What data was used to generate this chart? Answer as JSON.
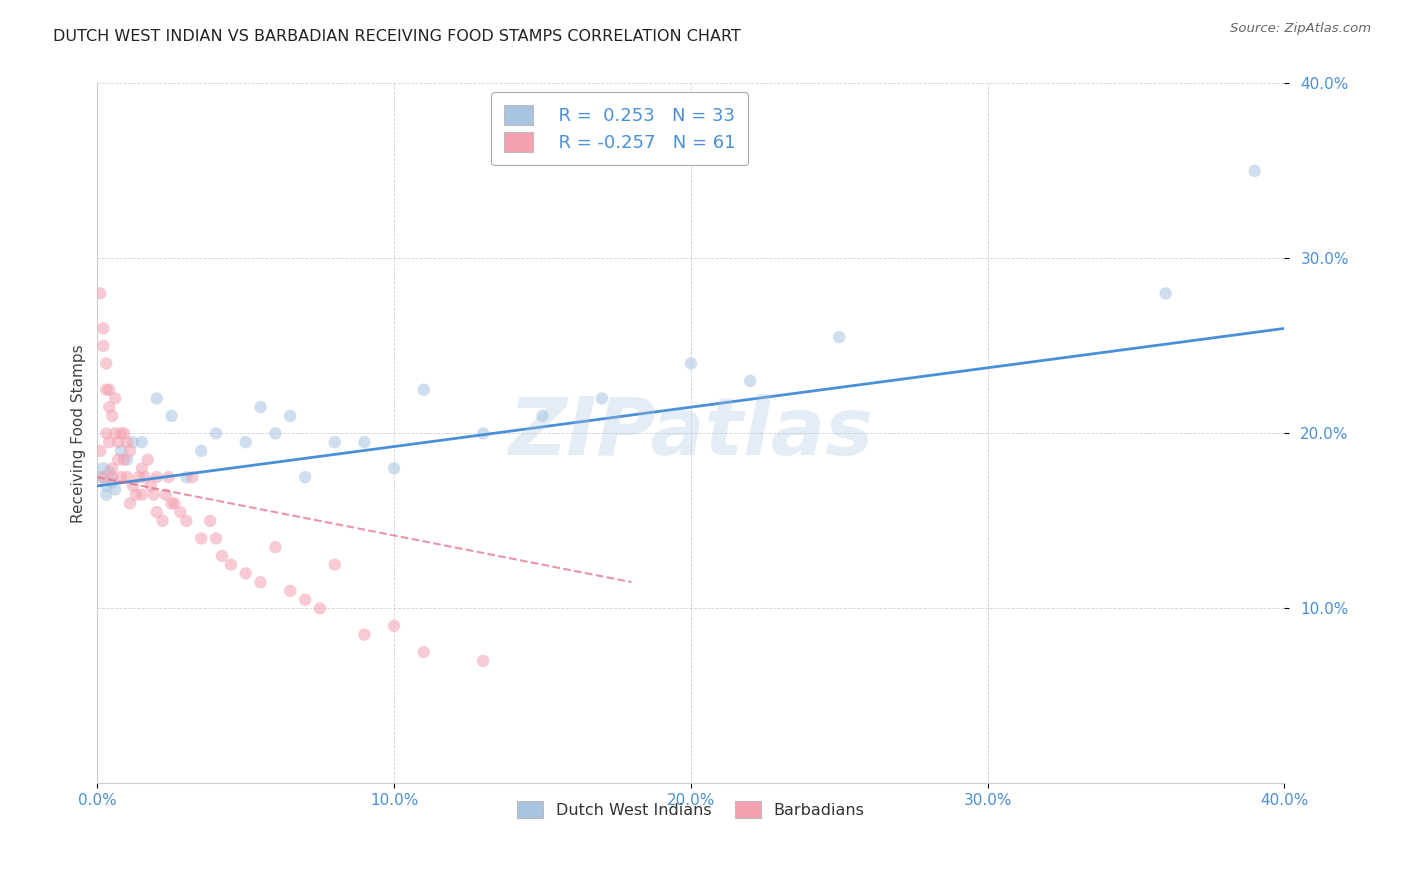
{
  "title": "DUTCH WEST INDIAN VS BARBADIAN RECEIVING FOOD STAMPS CORRELATION CHART",
  "source": "Source: ZipAtlas.com",
  "ylabel": "Receiving Food Stamps",
  "xlim": [
    0.0,
    0.4
  ],
  "ylim": [
    0.0,
    0.4
  ],
  "xtick_labels": [
    "0.0%",
    "10.0%",
    "20.0%",
    "30.0%",
    "40.0%"
  ],
  "xtick_values": [
    0.0,
    0.1,
    0.2,
    0.3,
    0.4
  ],
  "ytick_labels": [
    "10.0%",
    "20.0%",
    "30.0%",
    "40.0%"
  ],
  "ytick_values": [
    0.1,
    0.2,
    0.3,
    0.4
  ],
  "legend_labels": [
    "Dutch West Indians",
    "Barbadians"
  ],
  "legend_r_blue": "R =  0.253",
  "legend_n_blue": "N = 33",
  "legend_r_pink": "R = -0.257",
  "legend_n_pink": "N = 61",
  "watermark": "ZIPatlas",
  "blue_color": "#a8c4e0",
  "pink_color": "#f4a0b0",
  "blue_line_color": "#4a90d9",
  "pink_line_color": "#e06880",
  "axis_label_color": "#4a90d9",
  "background_color": "#ffffff",
  "scatter_size": 80,
  "scatter_alpha": 0.55,
  "blue_x": [
    0.001,
    0.002,
    0.003,
    0.003,
    0.004,
    0.005,
    0.006,
    0.008,
    0.01,
    0.012,
    0.015,
    0.02,
    0.025,
    0.03,
    0.035,
    0.04,
    0.05,
    0.055,
    0.06,
    0.065,
    0.07,
    0.08,
    0.09,
    0.1,
    0.11,
    0.13,
    0.15,
    0.17,
    0.2,
    0.22,
    0.25,
    0.36,
    0.39
  ],
  "blue_y": [
    0.175,
    0.18,
    0.17,
    0.165,
    0.178,
    0.172,
    0.168,
    0.19,
    0.185,
    0.195,
    0.195,
    0.22,
    0.21,
    0.175,
    0.19,
    0.2,
    0.195,
    0.215,
    0.2,
    0.21,
    0.175,
    0.195,
    0.195,
    0.18,
    0.225,
    0.2,
    0.21,
    0.22,
    0.24,
    0.23,
    0.255,
    0.28,
    0.35
  ],
  "pink_x": [
    0.001,
    0.001,
    0.002,
    0.002,
    0.002,
    0.003,
    0.003,
    0.003,
    0.004,
    0.004,
    0.004,
    0.005,
    0.005,
    0.005,
    0.006,
    0.006,
    0.007,
    0.007,
    0.008,
    0.008,
    0.009,
    0.009,
    0.01,
    0.01,
    0.011,
    0.011,
    0.012,
    0.013,
    0.014,
    0.015,
    0.015,
    0.016,
    0.017,
    0.018,
    0.019,
    0.02,
    0.02,
    0.022,
    0.023,
    0.024,
    0.025,
    0.026,
    0.028,
    0.03,
    0.032,
    0.035,
    0.038,
    0.04,
    0.042,
    0.045,
    0.05,
    0.055,
    0.06,
    0.065,
    0.07,
    0.075,
    0.08,
    0.09,
    0.1,
    0.11,
    0.13
  ],
  "pink_y": [
    0.19,
    0.28,
    0.25,
    0.26,
    0.175,
    0.24,
    0.225,
    0.2,
    0.215,
    0.225,
    0.195,
    0.21,
    0.18,
    0.175,
    0.22,
    0.2,
    0.195,
    0.185,
    0.2,
    0.175,
    0.2,
    0.185,
    0.195,
    0.175,
    0.19,
    0.16,
    0.17,
    0.165,
    0.175,
    0.18,
    0.165,
    0.175,
    0.185,
    0.17,
    0.165,
    0.175,
    0.155,
    0.15,
    0.165,
    0.175,
    0.16,
    0.16,
    0.155,
    0.15,
    0.175,
    0.14,
    0.15,
    0.14,
    0.13,
    0.125,
    0.12,
    0.115,
    0.135,
    0.11,
    0.105,
    0.1,
    0.125,
    0.085,
    0.09,
    0.075,
    0.07
  ],
  "blue_line_x": [
    0.0,
    0.4
  ],
  "blue_line_y": [
    0.17,
    0.26
  ],
  "pink_line_x": [
    0.0,
    0.18
  ],
  "pink_line_y": [
    0.175,
    0.115
  ]
}
